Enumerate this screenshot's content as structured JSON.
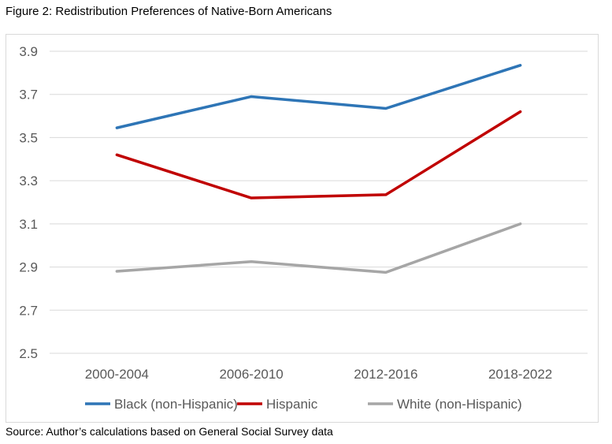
{
  "title": "Figure 2: Redistribution Preferences of Native-Born Americans",
  "source": "Source: Author’s calculations based on General Social Survey data",
  "chart_data": {
    "type": "line",
    "categories": [
      "2000-2004",
      "2006-2010",
      "2012-2016",
      "2018-2022"
    ],
    "ylim": [
      2.5,
      3.9
    ],
    "yticks": [
      "2.5",
      "2.7",
      "2.9",
      "3.1",
      "3.3",
      "3.5",
      "3.7",
      "3.9"
    ],
    "grid": true,
    "legend_position": "bottom",
    "series": [
      {
        "name": "Black (non-Hispanic)",
        "color": "#2e75b6",
        "values": [
          3.545,
          3.69,
          3.635,
          3.835
        ]
      },
      {
        "name": "Hispanic",
        "color": "#c00000",
        "values": [
          3.42,
          3.22,
          3.235,
          3.62
        ]
      },
      {
        "name": "White (non-Hispanic)",
        "color": "#a6a6a6",
        "values": [
          2.88,
          2.925,
          2.875,
          3.1
        ]
      }
    ]
  }
}
